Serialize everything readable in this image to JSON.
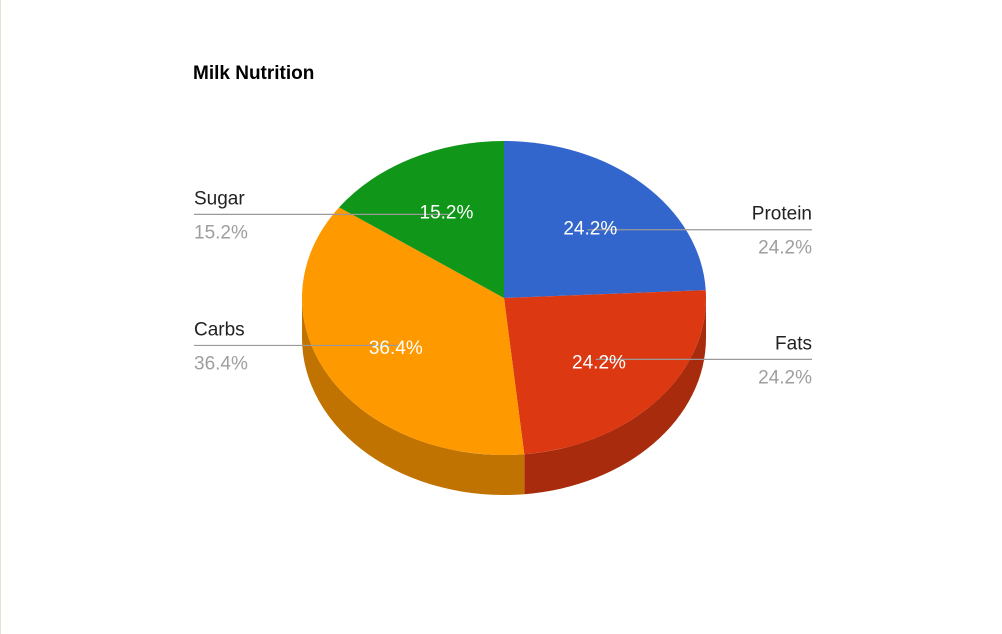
{
  "chart_data": {
    "type": "pie",
    "title": "Milk Nutrition",
    "slices": [
      {
        "label": "Protein",
        "value": 24.2,
        "display": "24.2%",
        "color": "#3366cc",
        "side_color": "#2a52a3"
      },
      {
        "label": "Fats",
        "value": 24.2,
        "display": "24.2%",
        "color": "#dc3912",
        "side_color": "#a82b0e"
      },
      {
        "label": "Carbs",
        "value": 36.4,
        "display": "36.4%",
        "color": "#ff9900",
        "side_color": "#c07300"
      },
      {
        "label": "Sugar",
        "value": 15.2,
        "display": "15.2%",
        "color": "#109618",
        "side_color": "#0c7012"
      }
    ],
    "style": "3d",
    "legend": "labeled-lines"
  }
}
